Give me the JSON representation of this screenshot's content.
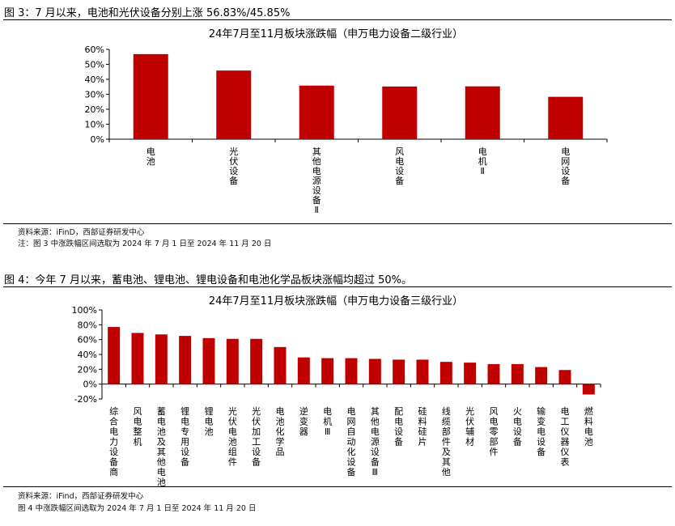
{
  "figure3": {
    "caption": "图 3：7 月以来，电池和光伏设备分别上涨 56.83%/45.85%",
    "source": "资料来源：iFinD，西部证券研发中心",
    "note": "注：图 3 中涨跌幅区间选取为 2024 年 7 月 1 日至 2024 年 11 月 20 日"
  },
  "figure4": {
    "caption": "图 4：今年 7 月以来，蓄电池、锂电池、锂电设备和电池化学品板块涨幅均超过 50%。",
    "source": "资料来源：iFind，西部证券研发中心",
    "note": "图 4 中涨跌幅区间选取为 2024 年 7 月 1 日至 2024 年 11 月 20 日"
  },
  "colors": {
    "bar": "#c00000"
  },
  "chart_data": [
    {
      "type": "bar",
      "title": "24年7月至11月板块涨跌幅（申万电力设备二级行业）",
      "categories": [
        "电池",
        "光伏设备",
        "其他电源设备Ⅱ",
        "风电设备",
        "电机Ⅱ",
        "电网设备"
      ],
      "values": [
        56.83,
        45.85,
        35.8,
        35.2,
        35.3,
        28.3
      ],
      "ylim": [
        0,
        60
      ],
      "yticks": [
        "0%",
        "10%",
        "20%",
        "30%",
        "40%",
        "50%",
        "60%"
      ],
      "xlabel": "",
      "ylabel": "",
      "grid": false
    },
    {
      "type": "bar",
      "title": "24年7月至11月板块涨跌幅（申万电力设备三级行业）",
      "categories": [
        "综合电力设备商",
        "风电整机",
        "蓄电池及其他电池",
        "锂电专用设备",
        "锂电池",
        "光伏电池组件",
        "光伏加工设备",
        "电池化学品",
        "逆变器",
        "电机Ⅲ",
        "电网自动化设备",
        "其他电源设备Ⅲ",
        "配电设备",
        "硅料硅片",
        "线缆部件及其他",
        "光伏辅材",
        "风电零部件",
        "火电设备",
        "输变电设备",
        "电工仪器仪表",
        "燃料电池"
      ],
      "values": [
        77,
        69,
        67,
        65,
        62,
        61,
        61,
        50,
        36,
        35,
        35,
        34,
        33,
        33,
        30,
        29,
        27,
        27,
        23,
        19,
        -14
      ],
      "ylim": [
        -20,
        100
      ],
      "yticks": [
        "-20%",
        "0%",
        "20%",
        "40%",
        "60%",
        "80%",
        "100%"
      ],
      "xlabel": "",
      "ylabel": "",
      "grid": false
    }
  ]
}
